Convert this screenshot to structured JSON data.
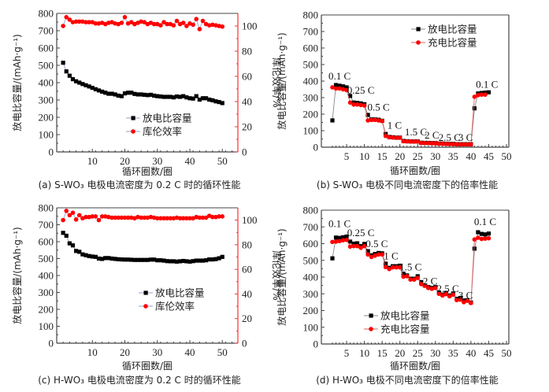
{
  "chart_data": [
    {
      "id": "a",
      "type": "scatter",
      "caption": "(a) S-WO₃ 电极电流密度为 0.2 C 时的循环性能",
      "xlabel": "循环圈数/圈",
      "ylabel": "放电比容量/(mAh·g⁻¹)",
      "ylabel_right": "库伦效率/%",
      "xlim": [
        0,
        55
      ],
      "ylim": [
        0,
        800
      ],
      "ylim_right": [
        0,
        110
      ],
      "xticks": [
        10,
        20,
        30,
        40,
        50
      ],
      "yticks": [
        0,
        100,
        200,
        300,
        400,
        500,
        600,
        700,
        800
      ],
      "yticks_right": [
        0,
        20,
        40,
        60,
        80,
        100
      ],
      "legend_position": "center",
      "x": [
        1,
        2,
        3,
        4,
        5,
        6,
        7,
        8,
        9,
        10,
        11,
        12,
        13,
        14,
        15,
        16,
        17,
        18,
        19,
        20,
        21,
        22,
        23,
        24,
        25,
        26,
        27,
        28,
        29,
        30,
        31,
        32,
        33,
        34,
        35,
        36,
        37,
        38,
        39,
        40,
        41,
        42,
        43,
        44,
        45,
        46,
        47,
        48,
        49,
        50
      ],
      "series": [
        {
          "name": "放电比容量",
          "axis": "left",
          "marker": "square",
          "color": "#000000",
          "line_color": "#9aa0c8",
          "values": [
            515,
            465,
            440,
            420,
            408,
            400,
            392,
            385,
            378,
            370,
            362,
            355,
            348,
            342,
            336,
            336,
            332,
            325,
            322,
            338,
            342,
            342,
            335,
            332,
            332,
            330,
            328,
            330,
            325,
            322,
            320,
            318,
            318,
            318,
            315,
            320,
            318,
            322,
            315,
            310,
            308,
            322,
            302,
            310,
            310,
            302,
            298,
            292,
            288,
            282
          ]
        },
        {
          "name": "库伦效率",
          "axis": "right",
          "marker": "circle",
          "color": "#ff0000",
          "line_color": "#9aa0c8",
          "values": [
            100,
            107,
            105,
            103,
            103.5,
            103.5,
            103.5,
            103,
            103,
            103,
            102,
            102,
            102.5,
            101.5,
            102.5,
            103,
            102,
            101.5,
            102.5,
            107,
            102,
            103,
            101.5,
            102.5,
            103.5,
            103,
            101.5,
            102.5,
            101.5,
            101.5,
            100.5,
            103,
            101.5,
            101.5,
            100.5,
            104,
            101.5,
            102.5,
            100,
            102,
            101,
            105.5,
            97.5,
            104,
            101.5,
            100.5,
            101,
            100.5,
            100,
            99.5
          ]
        }
      ]
    },
    {
      "id": "b",
      "type": "scatter",
      "caption": "(b) S-WO₃ 电极不同电流密度下的倍率性能",
      "xlabel": "循环圈数/圈",
      "ylabel": "放电比容量/(mAh·g⁻¹)",
      "xlim": [
        0,
        50
      ],
      "ylim": [
        0,
        800
      ],
      "xticks": [
        5,
        10,
        15,
        20,
        25,
        30,
        35,
        40,
        45,
        50
      ],
      "yticks": [
        0,
        100,
        200,
        300,
        400,
        500,
        600,
        700,
        800
      ],
      "legend_position": "top-right",
      "x": [
        1,
        2,
        3,
        4,
        5,
        6,
        7,
        8,
        9,
        10,
        11,
        12,
        13,
        14,
        15,
        16,
        17,
        18,
        19,
        20,
        21,
        22,
        23,
        24,
        25,
        26,
        27,
        28,
        29,
        30,
        31,
        32,
        33,
        34,
        35,
        36,
        37,
        38,
        39,
        40,
        41,
        42,
        43,
        44,
        45
      ],
      "series": [
        {
          "name": "放电比容量",
          "marker": "square",
          "color": "#000000",
          "line_color": "#888888",
          "values": [
            162,
            376,
            372,
            368,
            362,
            310,
            270,
            268,
            265,
            260,
            195,
            168,
            168,
            166,
            160,
            80,
            62,
            60,
            58,
            58,
            38,
            36,
            35,
            35,
            35,
            27,
            26,
            26,
            25,
            25,
            22,
            22,
            21,
            20,
            20,
            18,
            18,
            18,
            18,
            18,
            235,
            325,
            328,
            330,
            332
          ]
        },
        {
          "name": "充电比容量",
          "marker": "circle",
          "color": "#ff0000",
          "line_color": "#e06060",
          "values": [
            362,
            355,
            355,
            350,
            345,
            270,
            258,
            258,
            255,
            252,
            162,
            165,
            165,
            162,
            158,
            68,
            60,
            58,
            57,
            57,
            36,
            35,
            34,
            34,
            34,
            26,
            25,
            25,
            24,
            24,
            21,
            21,
            20,
            19,
            19,
            17,
            17,
            17,
            17,
            17,
            305,
            315,
            318,
            318,
            null
          ]
        }
      ],
      "annotations": [
        {
          "text": "0.1 C",
          "x": 3,
          "y": 410
        },
        {
          "text": "0.25 C",
          "x": 9,
          "y": 325
        },
        {
          "text": "0.5 C",
          "x": 14,
          "y": 222
        },
        {
          "text": "1 C",
          "x": 18.5,
          "y": 112
        },
        {
          "text": "1.5 C",
          "x": 24.5,
          "y": 72
        },
        {
          "text": "2 C",
          "x": 29,
          "y": 52
        },
        {
          "text": "2.5 C",
          "x": 34,
          "y": 38
        },
        {
          "text": "3 C",
          "x": 38.5,
          "y": 38
        },
        {
          "text": "0.1 C",
          "x": 44.5,
          "y": 360
        }
      ]
    },
    {
      "id": "c",
      "type": "scatter",
      "caption": "(c) H-WO₃ 电极电流密度为 0.2 C 时的循环性能",
      "xlabel": "循环圈数/圈",
      "ylabel": "放电比容量/(mAh·g⁻¹)",
      "ylabel_right": "库伦效率/%",
      "xlim": [
        0,
        55
      ],
      "ylim": [
        0,
        800
      ],
      "ylim_right": [
        0,
        110
      ],
      "xticks": [
        10,
        20,
        30,
        40,
        50
      ],
      "yticks": [
        0,
        100,
        200,
        300,
        400,
        500,
        600,
        700,
        800
      ],
      "yticks_right": [
        0,
        20,
        40,
        60,
        80,
        100
      ],
      "legend_position": "center-right",
      "x": [
        1,
        2,
        3,
        4,
        5,
        6,
        7,
        8,
        9,
        10,
        11,
        12,
        13,
        14,
        15,
        16,
        17,
        18,
        19,
        20,
        21,
        22,
        23,
        24,
        25,
        26,
        27,
        28,
        29,
        30,
        31,
        32,
        33,
        34,
        35,
        36,
        37,
        38,
        39,
        40,
        41,
        42,
        43,
        44,
        45,
        46,
        47,
        48,
        49,
        50
      ],
      "series": [
        {
          "name": "放电比容量",
          "axis": "left",
          "marker": "square",
          "color": "#000000",
          "line_color": "#9aa0c8",
          "values": [
            652,
            635,
            590,
            578,
            545,
            540,
            525,
            520,
            515,
            512,
            510,
            500,
            498,
            503,
            503,
            500,
            498,
            496,
            495,
            494,
            494,
            493,
            492,
            492,
            492,
            492,
            492,
            494,
            494,
            490,
            490,
            488,
            485,
            484,
            484,
            482,
            484,
            486,
            484,
            482,
            485,
            488,
            488,
            488,
            490,
            495,
            495,
            497,
            502,
            510
          ]
        },
        {
          "name": "库伦效率",
          "axis": "right",
          "marker": "circle",
          "color": "#ff0000",
          "line_color": "#9aa0c8",
          "values": [
            100,
            107.5,
            104,
            106,
            100.5,
            104,
            101.5,
            102.5,
            102.5,
            103,
            103,
            100,
            103,
            103,
            102.5,
            102,
            102,
            102,
            102,
            102,
            102,
            102,
            101.5,
            102.5,
            102,
            102,
            102,
            102.5,
            102,
            101.5,
            101.5,
            101.5,
            101.5,
            101.5,
            101.5,
            102,
            101.5,
            101.5,
            101.5,
            101.5,
            101.5,
            102.5,
            102,
            102,
            102,
            103.5,
            102.5,
            102.5,
            103,
            103
          ]
        }
      ]
    },
    {
      "id": "d",
      "type": "scatter",
      "caption": "(d) H-WO₃ 电极不同电流密度下的倍率性能",
      "xlabel": "循环圈数/圈",
      "ylabel": "放电比容量/(mAh·g⁻¹)",
      "xlim": [
        0,
        50
      ],
      "ylim": [
        0,
        800
      ],
      "xticks": [
        5,
        10,
        15,
        20,
        25,
        30,
        35,
        40,
        45,
        50
      ],
      "yticks": [
        0,
        100,
        200,
        300,
        400,
        500,
        600,
        700,
        800
      ],
      "legend_position": "bottom-center",
      "x": [
        1,
        2,
        3,
        4,
        5,
        6,
        7,
        8,
        9,
        10,
        11,
        12,
        13,
        14,
        15,
        16,
        17,
        18,
        19,
        20,
        21,
        22,
        23,
        24,
        25,
        26,
        27,
        28,
        29,
        30,
        31,
        32,
        33,
        34,
        35,
        36,
        37,
        38,
        39,
        40,
        41,
        42,
        43,
        44,
        45
      ],
      "series": [
        {
          "name": "放电比容量",
          "marker": "square",
          "color": "#000000",
          "line_color": "#888888",
          "values": [
            512,
            636,
            634,
            638,
            642,
            612,
            600,
            602,
            585,
            598,
            555,
            530,
            538,
            544,
            542,
            480,
            455,
            465,
            465,
            468,
            420,
            410,
            390,
            390,
            405,
            370,
            350,
            340,
            335,
            340,
            308,
            295,
            305,
            290,
            302,
            270,
            275,
            260,
            262,
            248,
            570,
            668,
            658,
            655,
            660
          ]
        },
        {
          "name": "充电比容量",
          "marker": "circle",
          "color": "#ff0000",
          "line_color": "#e06060",
          "values": [
            610,
            612,
            615,
            620,
            622,
            582,
            585,
            585,
            575,
            585,
            535,
            520,
            528,
            535,
            535,
            460,
            448,
            458,
            458,
            458,
            402,
            405,
            385,
            385,
            395,
            358,
            348,
            335,
            330,
            335,
            300,
            290,
            298,
            285,
            295,
            262,
            265,
            250,
            258,
            245,
            625,
            635,
            628,
            630,
            632
          ]
        }
      ],
      "annotations": [
        {
          "text": "0.1 C",
          "x": 3,
          "y": 700
        },
        {
          "text": "0.25 C",
          "x": 9,
          "y": 645
        },
        {
          "text": "0.5 C",
          "x": 13.5,
          "y": 580
        },
        {
          "text": "1 C",
          "x": 17.5,
          "y": 505
        },
        {
          "text": "1.5 C",
          "x": 23,
          "y": 440
        },
        {
          "text": "2 C",
          "x": 28.5,
          "y": 355
        },
        {
          "text": "2.5 C",
          "x": 33.5,
          "y": 310
        },
        {
          "text": "3 C",
          "x": 38.5,
          "y": 270
        },
        {
          "text": "0.1 C",
          "x": 44,
          "y": 710
        }
      ]
    }
  ]
}
